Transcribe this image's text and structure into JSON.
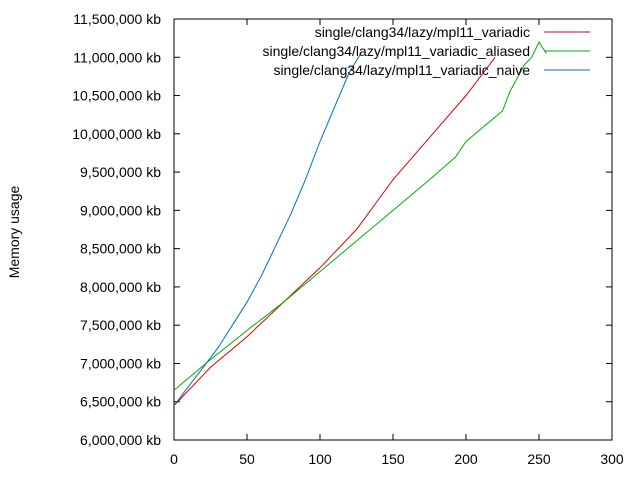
{
  "chart_data": {
    "type": "line",
    "title": "",
    "xlabel": "",
    "ylabel": "Memory usage",
    "xlim": [
      0,
      300
    ],
    "ylim": [
      6000000,
      11500000
    ],
    "x_ticks": [
      0,
      50,
      100,
      150,
      200,
      250,
      300
    ],
    "x_tick_labels": [
      "0",
      "50",
      "100",
      "150",
      "200",
      "250",
      "300"
    ],
    "y_ticks": [
      6000000,
      6500000,
      7000000,
      7500000,
      8000000,
      8500000,
      9000000,
      9500000,
      10000000,
      10500000,
      11000000,
      11500000
    ],
    "y_tick_labels": [
      "6,000,000 kb",
      "6,500,000 kb",
      "7,000,000 kb",
      "7,500,000 kb",
      "8,000,000 kb",
      "8,500,000 kb",
      "9,000,000 kb",
      "9,500,000 kb",
      "10,000,000 kb",
      "10,500,000 kb",
      "11,000,000 kb",
      "11,500,000 kb"
    ],
    "grid": false,
    "legend_position": "top-right",
    "series": [
      {
        "name": "single/clang34/lazy/mpl11_variadic",
        "color": "#e00000",
        "x": [
          0,
          25,
          50,
          75,
          100,
          125,
          150,
          175,
          200,
          210,
          220
        ],
        "values": [
          6450000,
          6950000,
          7350000,
          7800000,
          8250000,
          8750000,
          9400000,
          9950000,
          10500000,
          10750000,
          11000000
        ]
      },
      {
        "name": "single/clang34/lazy/mpl11_variadic_aliased",
        "color": "#00b000",
        "x": [
          0,
          25,
          50,
          75,
          100,
          125,
          150,
          175,
          193,
          200,
          225,
          230,
          240,
          245,
          250,
          255
        ],
        "values": [
          6650000,
          7050000,
          7430000,
          7800000,
          8200000,
          8600000,
          9000000,
          9400000,
          9700000,
          9900000,
          10300000,
          10550000,
          10900000,
          11000000,
          11200000,
          11050000
        ]
      },
      {
        "name": "single/clang34/lazy/mpl11_variadic_naive",
        "color": "#0070c0",
        "x": [
          0,
          10,
          20,
          30,
          40,
          50,
          60,
          70,
          80,
          90,
          100,
          110,
          120,
          128
        ],
        "values": [
          6450000,
          6700000,
          6950000,
          7200000,
          7500000,
          7800000,
          8150000,
          8550000,
          8950000,
          9400000,
          9900000,
          10350000,
          10800000,
          11050000
        ]
      }
    ]
  }
}
